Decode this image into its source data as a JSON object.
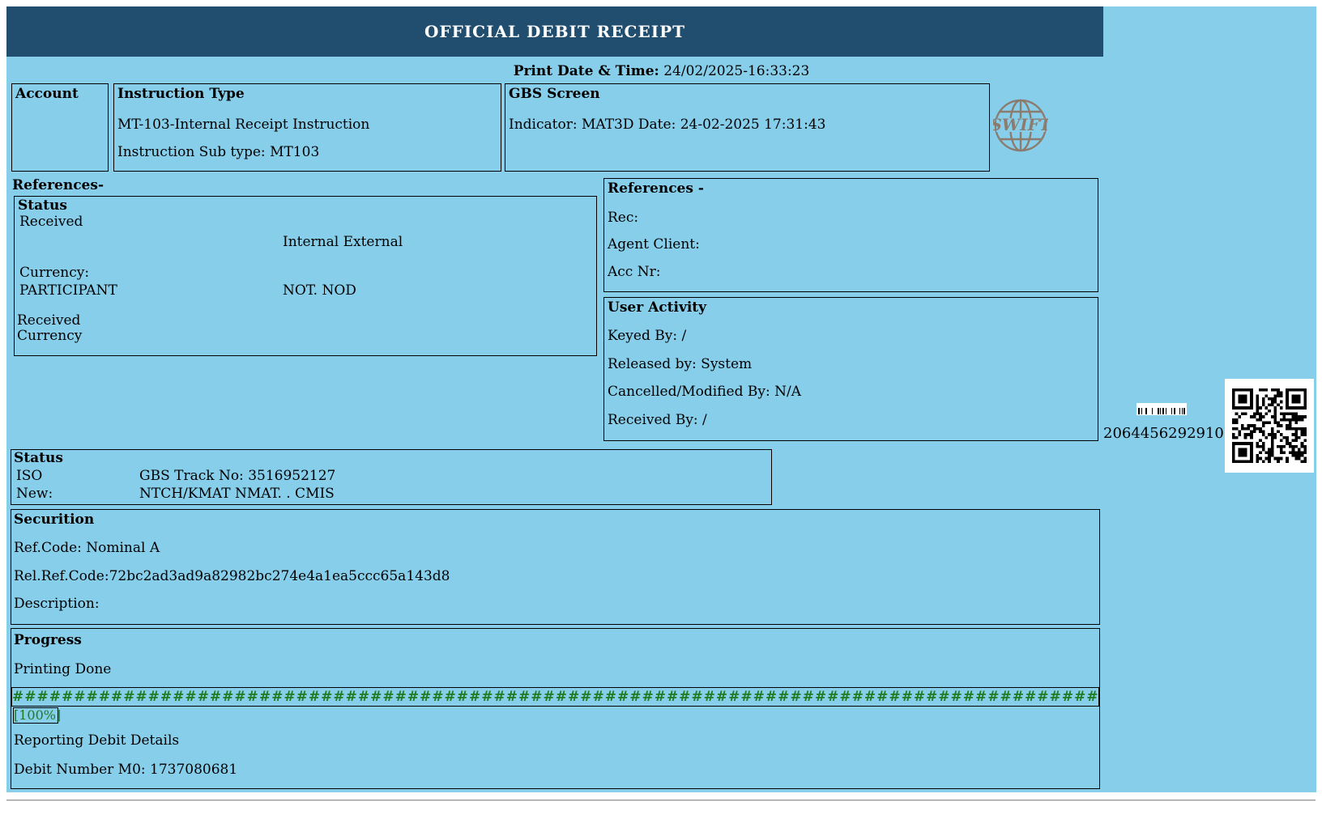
{
  "header": {
    "title": "OFFICIAL DEBIT RECEIPT"
  },
  "print_line": {
    "label": "Print Date & Time:",
    "value": "24/02/2025-16:33:23"
  },
  "row1": {
    "account": {
      "heading": "Account"
    },
    "instruction": {
      "heading": "Instruction Type",
      "line1": "MT-103-Internal Receipt Instruction",
      "line2": "Instruction Sub type: MT103"
    },
    "gbs": {
      "heading": "GBS Screen",
      "line1": "Indicator: MAT3D Date: 24-02-2025 17:31:43"
    }
  },
  "swift_logo": {
    "text": "SWIFT"
  },
  "references_left": {
    "heading": "References-",
    "status_box": {
      "heading": "Status",
      "received": "Received",
      "internal_external": "Internal External",
      "currency_label": "Currency:",
      "participant": "PARTICIPANT",
      "not_nod": "NOT. NOD",
      "received2": "Received",
      "currency2": "Currency"
    }
  },
  "references_right": {
    "heading": "References -",
    "rec": "Rec:",
    "agent_client": "Agent Client:",
    "acc_nr": "Acc Nr:"
  },
  "user_activity": {
    "heading": "User Activity",
    "keyed_by": "Keyed By: /",
    "released_by": "Released by: System",
    "cancelled_by": "Cancelled/Modified By: N/A",
    "received_by": "Received By: /"
  },
  "status_iso": {
    "heading": "Status",
    "rows": [
      [
        "ISO",
        "GBS Track No: 3516952127"
      ],
      [
        "New:",
        "NTCH/KMAT NMAT. . CMIS"
      ]
    ]
  },
  "securition": {
    "heading": "Securition",
    "ref_code": "Ref.Code: Nominal A",
    "rel_ref_code": "Rel.Ref.Code:72bc2ad3ad9a82982bc274e4a1ea5ccc65a143d8",
    "description": "Description:"
  },
  "progress": {
    "heading": "Progress",
    "printing": "Printing Done",
    "hash_line": "########################################################################################################################",
    "percent": "[100%]",
    "reporting": "Reporting Debit Details",
    "debit_number": "Debit Number M0: 1737080681"
  },
  "side": {
    "barcode_number": "20644562929101"
  },
  "colors": {
    "header_navy": "#214E6E",
    "panel_blue": "#87CEEB",
    "progress_green": "#1E7B1E",
    "swift_taupe": "#8B7C6F"
  }
}
